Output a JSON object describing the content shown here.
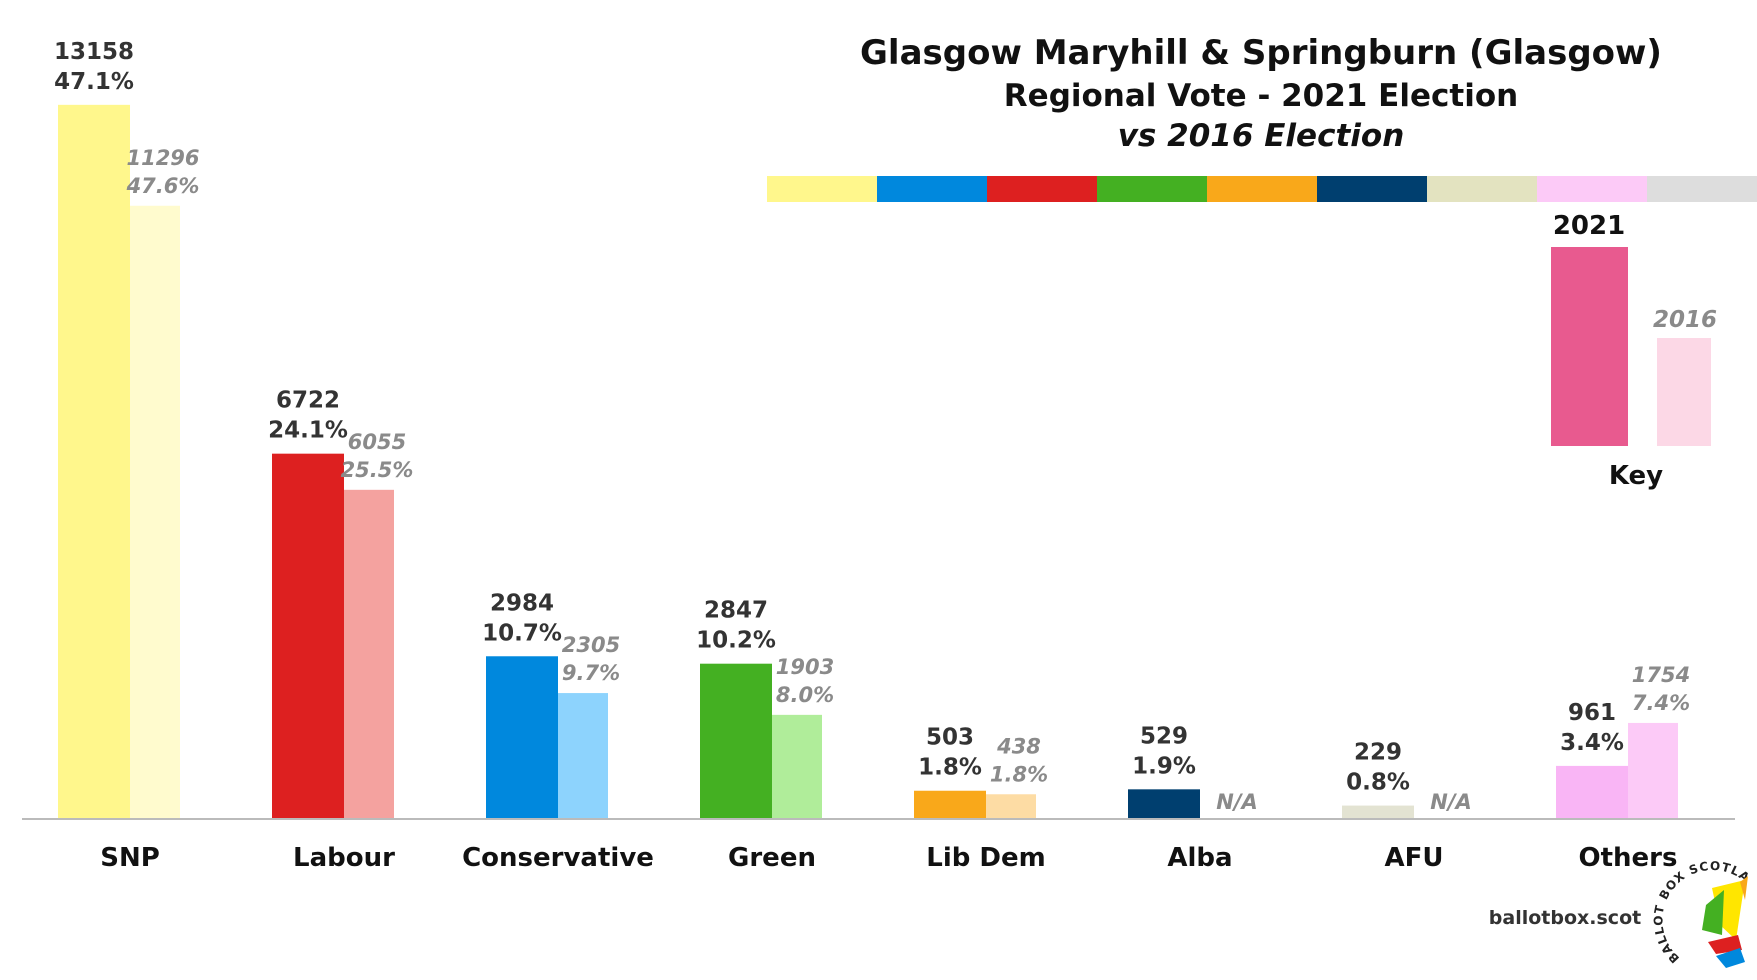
{
  "title": "Glasgow Maryhill & Springburn (Glasgow)",
  "subtitle": "Regional Vote - 2021 Election",
  "subtitle2": "vs 2016 Election",
  "key": {
    "label": "Key",
    "year_2021": "2021",
    "year_2016": "2016"
  },
  "brand": "ballotbox.scot",
  "logo_text": "BALLOT BOX SCOTLAND",
  "colors": {
    "strip": [
      "#fff78c",
      "#0088dd",
      "#dd2020",
      "#44b022",
      "#f9a81a",
      "#003f6f",
      "#e3e3c0",
      "#fccaf7",
      "#dddddd"
    ],
    "key_2021": "#e85a8f",
    "key_2016": "#fcd8e6",
    "axis": "#bbbbbb"
  },
  "chart_data": {
    "type": "bar",
    "categories": [
      "SNP",
      "Labour",
      "Conservative",
      "Green",
      "Lib Dem",
      "Alba",
      "AFU",
      "Others"
    ],
    "series": [
      {
        "name": "2021",
        "values": [
          13158,
          6722,
          2984,
          2847,
          503,
          529,
          229,
          961
        ],
        "labels": [
          "47.1%",
          "24.1%",
          "10.7%",
          "10.2%",
          "1.8%",
          "1.9%",
          "0.8%",
          "3.4%"
        ],
        "colors": [
          "#fff78c",
          "#dd2020",
          "#0088dd",
          "#44b022",
          "#f9a81a",
          "#003f6f",
          "#e3e3d2",
          "#f9b5f5"
        ]
      },
      {
        "name": "2016",
        "values": [
          11296,
          6055,
          2305,
          1903,
          438,
          null,
          null,
          1754
        ],
        "labels": [
          "47.6%",
          "25.5%",
          "9.7%",
          "8.0%",
          "1.8%",
          "N/A",
          "N/A",
          "7.4%"
        ],
        "colors": [
          "#fffbce",
          "#f4a29f",
          "#8dd3fd",
          "#b0ed9a",
          "#fddca4",
          "#ffffff",
          "#ffffff",
          "#fccaf7"
        ]
      }
    ]
  }
}
